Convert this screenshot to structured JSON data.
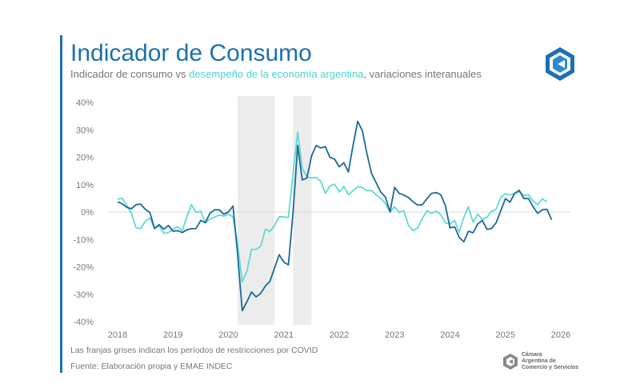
{
  "header": {
    "title": "Indicador de Consumo",
    "subtitle_part1": "Indicador de consumo vs ",
    "subtitle_highlight": "desempeño de la economía argentina",
    "subtitle_part2": ", variaciones interanuales"
  },
  "footer": {
    "note": "Las franjas grises indican los períodos de restricciones por COVID",
    "source": "Fuente: Elaboración propia y EMAE INDEC",
    "org_line1": "Cámara",
    "org_line2": "Argentina de",
    "org_line3": "Comercio y Servicios"
  },
  "logo": {
    "icon": "cac-hexagon-logo-icon",
    "color": "#1f6fb5"
  },
  "chart_data": {
    "type": "line",
    "title": "",
    "xlabel": "",
    "ylabel": "",
    "x_start": "2018-01",
    "x_frequency": "monthly",
    "xlim": [
      2018,
      2026
    ],
    "ylim": [
      -40,
      40
    ],
    "x_ticks": [
      "2018",
      "2019",
      "2020",
      "2021",
      "2022",
      "2023",
      "2024",
      "2025",
      "2026"
    ],
    "y_ticks": [
      "40%",
      "30%",
      "20%",
      "10%",
      "0%",
      "-10%",
      "-20%",
      "-30%",
      "-40%"
    ],
    "y_tick_values": [
      40,
      30,
      20,
      10,
      0,
      -10,
      -20,
      -30,
      -40
    ],
    "grid": false,
    "zero_line": true,
    "legend": "none",
    "shaded_periods": [
      {
        "from": "2020-03",
        "to": "2020-10"
      },
      {
        "from": "2021-03",
        "to": "2021-06"
      }
    ],
    "shade_color": "#ececec",
    "series": [
      {
        "color": "#1b6a96",
        "values": [
          3.7,
          3.0,
          1.7,
          1.2,
          2.7,
          2.9,
          1.0,
          -0.2,
          -6.0,
          -4.6,
          -6.3,
          -4.9,
          -7.0,
          -6.8,
          -7.5,
          -6.5,
          -6.1,
          -6.0,
          -3.1,
          -3.9,
          -0.5,
          0.8,
          0.8,
          -0.8,
          0.0,
          2.2,
          -15.5,
          -36.0,
          -32.8,
          -29.2,
          -31.0,
          -29.7,
          -27.0,
          -25.3,
          -20.4,
          -15.6,
          -18.3,
          -19.3,
          -0.3,
          24.3,
          11.7,
          12.4,
          20.4,
          24.3,
          23.4,
          23.8,
          19.9,
          19.3,
          16.5,
          18.0,
          14.6,
          24.3,
          33.1,
          29.7,
          21.4,
          14.1,
          10.7,
          7.3,
          5.5,
          0.0,
          9.0,
          6.8,
          6.2,
          5.3,
          3.7,
          2.5,
          2.7,
          4.8,
          6.8,
          7.1,
          6.3,
          2.4,
          -5.8,
          -5.4,
          -9.2,
          -10.9,
          -7.0,
          -7.6,
          -4.4,
          -3.1,
          -6.3,
          -6.0,
          -3.9,
          0.5,
          4.9,
          3.6,
          6.8,
          7.9,
          4.9,
          4.9,
          1.9,
          -0.5,
          0.8,
          1.0,
          -2.8
        ]
      },
      {
        "color": "#5fd9d6",
        "values": [
          4.7,
          5.0,
          2.4,
          -0.5,
          -5.8,
          -6.1,
          -3.4,
          -2.2,
          -6.1,
          -4.9,
          -7.8,
          -7.5,
          -6.3,
          -5.4,
          -6.8,
          -1.7,
          2.7,
          -0.2,
          0.3,
          -3.9,
          -2.5,
          -1.9,
          -1.1,
          -1.5,
          -0.8,
          -1.8,
          -11.5,
          -25.5,
          -21.6,
          -13.6,
          -13.6,
          -12.5,
          -6.3,
          -7.1,
          -4.9,
          -1.7,
          -1.8,
          -2.0,
          14.0,
          29.2,
          16.0,
          12.8,
          12.4,
          12.6,
          11.2,
          6.8,
          9.5,
          10.2,
          7.3,
          9.3,
          6.3,
          7.8,
          9.2,
          9.0,
          7.8,
          7.8,
          6.3,
          5.0,
          3.1,
          0.0,
          1.9,
          -0.2,
          0.5,
          -4.9,
          -6.8,
          -5.8,
          -2.4,
          0.5,
          -0.5,
          0.3,
          -1.0,
          -3.9,
          -4.4,
          -3.1,
          -7.3,
          -1.9,
          1.9,
          -3.7,
          -0.8,
          -2.7,
          -1.9,
          0.3,
          1.0,
          5.4,
          6.7,
          6.2,
          6.8,
          7.4,
          6.0,
          6.3,
          3.9,
          2.7,
          4.8,
          3.7
        ]
      }
    ]
  }
}
